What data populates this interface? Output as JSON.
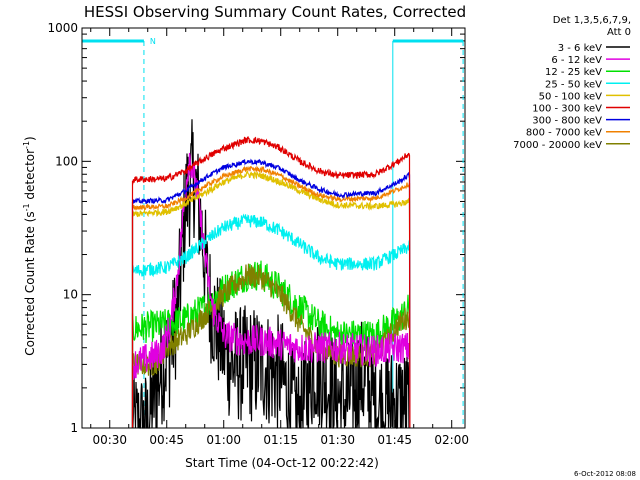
{
  "chart_data": {
    "type": "line",
    "title": "HESSI Observing Summary Count Rates, Corrected",
    "xlabel": "Start Time (04-Oct-12 00:22:42)",
    "ylabel_main": "Corrected Count Rate (s",
    "ylabel_sup1": "-1",
    "ylabel_mid": " detector",
    "ylabel_sup2": "-1",
    "ylabel_end": ")",
    "yscale": "log",
    "ylim": [
      1,
      1000
    ],
    "xlim": [
      22.7,
      123.5
    ],
    "x_unit": "minutes after 00:00 UT",
    "x_ticks": [
      {
        "value": 30,
        "label": "00:30"
      },
      {
        "value": 45,
        "label": "00:45"
      },
      {
        "value": 60,
        "label": "01:00"
      },
      {
        "value": 75,
        "label": "01:15"
      },
      {
        "value": 90,
        "label": "01:30"
      },
      {
        "value": 105,
        "label": "01:45"
      },
      {
        "value": 120,
        "label": "02:00"
      }
    ],
    "y_ticks": [
      {
        "value": 1,
        "label": "1"
      },
      {
        "value": 10,
        "label": "10"
      },
      {
        "value": 100,
        "label": "100"
      },
      {
        "value": 1000,
        "label": "1000"
      }
    ],
    "detector_info": "Det 1,3,5,6,7,9,",
    "attenuator_info": "Att 0",
    "footer_timestamp": "6-Oct-2012 08:08",
    "night_intervals": [
      [
        22.7,
        39.0
      ],
      [
        104.5,
        123.0
      ]
    ],
    "night_marker_label": "N",
    "night_color": "#00e0f0",
    "data_start": 36.0,
    "data_end": 109.0,
    "series": [
      {
        "name": "3 - 6 keV",
        "color": "#000000",
        "points": [
          [
            36,
            1
          ],
          [
            40,
            1
          ],
          [
            42,
            2
          ],
          [
            44,
            3
          ],
          [
            46,
            4
          ],
          [
            48,
            8
          ],
          [
            50,
            50
          ],
          [
            52,
            80
          ],
          [
            54,
            35
          ],
          [
            56,
            10
          ],
          [
            58,
            6
          ],
          [
            60,
            4
          ],
          [
            62,
            3
          ],
          [
            65,
            3
          ],
          [
            70,
            3
          ],
          [
            75,
            2.5
          ],
          [
            78,
            1.5
          ],
          [
            80,
            1.2
          ],
          [
            84,
            3
          ],
          [
            88,
            2
          ],
          [
            92,
            1.5
          ],
          [
            96,
            2.5
          ],
          [
            100,
            1.5
          ],
          [
            103,
            1.5
          ]
        ],
        "noise": 0.45
      },
      {
        "name": "6 - 12 keV",
        "color": "#e000e0",
        "points": [
          [
            36,
            3
          ],
          [
            42,
            3.5
          ],
          [
            44,
            4
          ],
          [
            46,
            6
          ],
          [
            48,
            15
          ],
          [
            50,
            65
          ],
          [
            51,
            110
          ],
          [
            53,
            60
          ],
          [
            55,
            20
          ],
          [
            57,
            8
          ],
          [
            60,
            5
          ],
          [
            65,
            4.5
          ],
          [
            70,
            4.5
          ],
          [
            80,
            4
          ],
          [
            90,
            4
          ],
          [
            100,
            3.8
          ],
          [
            106,
            4
          ],
          [
            109,
            4
          ]
        ],
        "noise": 0.12
      },
      {
        "name": "12 - 25 keV",
        "color": "#00e000",
        "points": [
          [
            36,
            5.5
          ],
          [
            45,
            6
          ],
          [
            50,
            6.5
          ],
          [
            55,
            8
          ],
          [
            60,
            11
          ],
          [
            66,
            14
          ],
          [
            70,
            14
          ],
          [
            75,
            11
          ],
          [
            80,
            8
          ],
          [
            85,
            6
          ],
          [
            90,
            5
          ],
          [
            100,
            5
          ],
          [
            106,
            6.5
          ],
          [
            109,
            8
          ]
        ],
        "noise": 0.12
      },
      {
        "name": "25 - 50 keV",
        "color": "#00f0f0",
        "points": [
          [
            36,
            15
          ],
          [
            45,
            16
          ],
          [
            50,
            19
          ],
          [
            55,
            25
          ],
          [
            60,
            32
          ],
          [
            66,
            36
          ],
          [
            70,
            35
          ],
          [
            75,
            30
          ],
          [
            80,
            24
          ],
          [
            85,
            19
          ],
          [
            90,
            17
          ],
          [
            100,
            17
          ],
          [
            105,
            20
          ],
          [
            109,
            23
          ]
        ],
        "noise": 0.05
      },
      {
        "name": "50 - 100 keV",
        "color": "#e0c000",
        "points": [
          [
            36,
            40
          ],
          [
            45,
            42
          ],
          [
            50,
            48
          ],
          [
            55,
            58
          ],
          [
            60,
            70
          ],
          [
            66,
            80
          ],
          [
            70,
            78
          ],
          [
            75,
            70
          ],
          [
            80,
            60
          ],
          [
            85,
            52
          ],
          [
            90,
            47
          ],
          [
            100,
            46
          ],
          [
            106,
            48
          ],
          [
            109,
            50
          ]
        ],
        "noise": 0.025
      },
      {
        "name": "100 - 300 keV",
        "color": "#e00000",
        "points": [
          [
            36,
            73
          ],
          [
            45,
            74
          ],
          [
            50,
            85
          ],
          [
            55,
            105
          ],
          [
            60,
            125
          ],
          [
            66,
            145
          ],
          [
            70,
            142
          ],
          [
            75,
            125
          ],
          [
            80,
            100
          ],
          [
            85,
            85
          ],
          [
            90,
            78
          ],
          [
            100,
            80
          ],
          [
            106,
            100
          ],
          [
            109,
            115
          ]
        ],
        "noise": 0.025
      },
      {
        "name": "300 - 800 keV",
        "color": "#0000e0",
        "points": [
          [
            36,
            50
          ],
          [
            45,
            51
          ],
          [
            50,
            60
          ],
          [
            55,
            75
          ],
          [
            60,
            90
          ],
          [
            66,
            100
          ],
          [
            70,
            98
          ],
          [
            75,
            88
          ],
          [
            80,
            72
          ],
          [
            85,
            62
          ],
          [
            90,
            56
          ],
          [
            100,
            58
          ],
          [
            106,
            70
          ],
          [
            109,
            80
          ]
        ],
        "noise": 0.018
      },
      {
        "name": "800 - 7000 keV",
        "color": "#f08000",
        "points": [
          [
            36,
            45
          ],
          [
            45,
            46
          ],
          [
            50,
            53
          ],
          [
            55,
            65
          ],
          [
            60,
            77
          ],
          [
            66,
            88
          ],
          [
            70,
            87
          ],
          [
            75,
            78
          ],
          [
            80,
            65
          ],
          [
            85,
            56
          ],
          [
            90,
            52
          ],
          [
            100,
            53
          ],
          [
            106,
            62
          ],
          [
            109,
            68
          ]
        ],
        "noise": 0.018
      },
      {
        "name": "7000 - 20000 keV",
        "color": "#808000",
        "points": [
          [
            36,
            3
          ],
          [
            42,
            3
          ],
          [
            45,
            4
          ],
          [
            50,
            5
          ],
          [
            55,
            7
          ],
          [
            60,
            10
          ],
          [
            66,
            14
          ],
          [
            70,
            13.5
          ],
          [
            75,
            10
          ],
          [
            80,
            6
          ],
          [
            85,
            4
          ],
          [
            90,
            3.5
          ],
          [
            100,
            3.5
          ],
          [
            106,
            6
          ],
          [
            109,
            7
          ]
        ],
        "noise": 0.09
      }
    ]
  }
}
